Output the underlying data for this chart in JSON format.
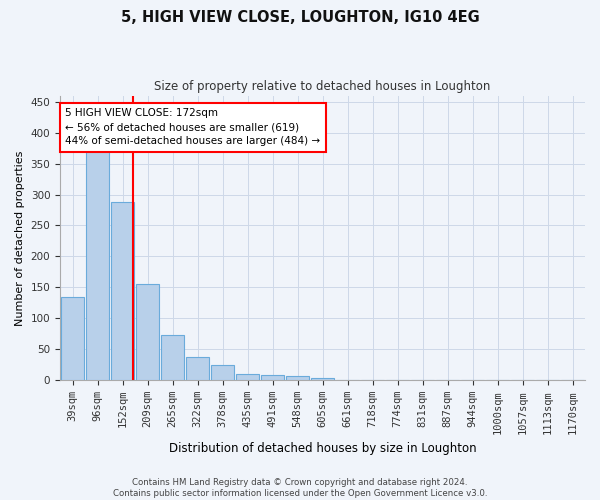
{
  "title": "5, HIGH VIEW CLOSE, LOUGHTON, IG10 4EG",
  "subtitle": "Size of property relative to detached houses in Loughton",
  "xlabel": "Distribution of detached houses by size in Loughton",
  "ylabel": "Number of detached properties",
  "bar_labels": [
    "39sqm",
    "96sqm",
    "152sqm",
    "209sqm",
    "265sqm",
    "322sqm",
    "378sqm",
    "435sqm",
    "491sqm",
    "548sqm",
    "605sqm",
    "661sqm",
    "718sqm",
    "774sqm",
    "831sqm",
    "887sqm",
    "944sqm",
    "1000sqm",
    "1057sqm",
    "1113sqm",
    "1170sqm"
  ],
  "bar_values": [
    135,
    370,
    288,
    155,
    73,
    37,
    25,
    10,
    8,
    6,
    4,
    0,
    0,
    0,
    0,
    0,
    0,
    0,
    0,
    0,
    0
  ],
  "bar_color": "#b8d0ea",
  "bar_edge_color": "#6aabdb",
  "grid_color": "#cdd8e8",
  "vline_x": 2.43,
  "vline_color": "red",
  "annotation_text": "5 HIGH VIEW CLOSE: 172sqm\n← 56% of detached houses are smaller (619)\n44% of semi-detached houses are larger (484) →",
  "annotation_box_color": "white",
  "annotation_box_edge": "red",
  "ylim": [
    0,
    460
  ],
  "yticks": [
    0,
    50,
    100,
    150,
    200,
    250,
    300,
    350,
    400,
    450
  ],
  "footer": "Contains HM Land Registry data © Crown copyright and database right 2024.\nContains public sector information licensed under the Open Government Licence v3.0.",
  "fig_width": 6.0,
  "fig_height": 5.0,
  "bg_color": "#f0f4fa"
}
